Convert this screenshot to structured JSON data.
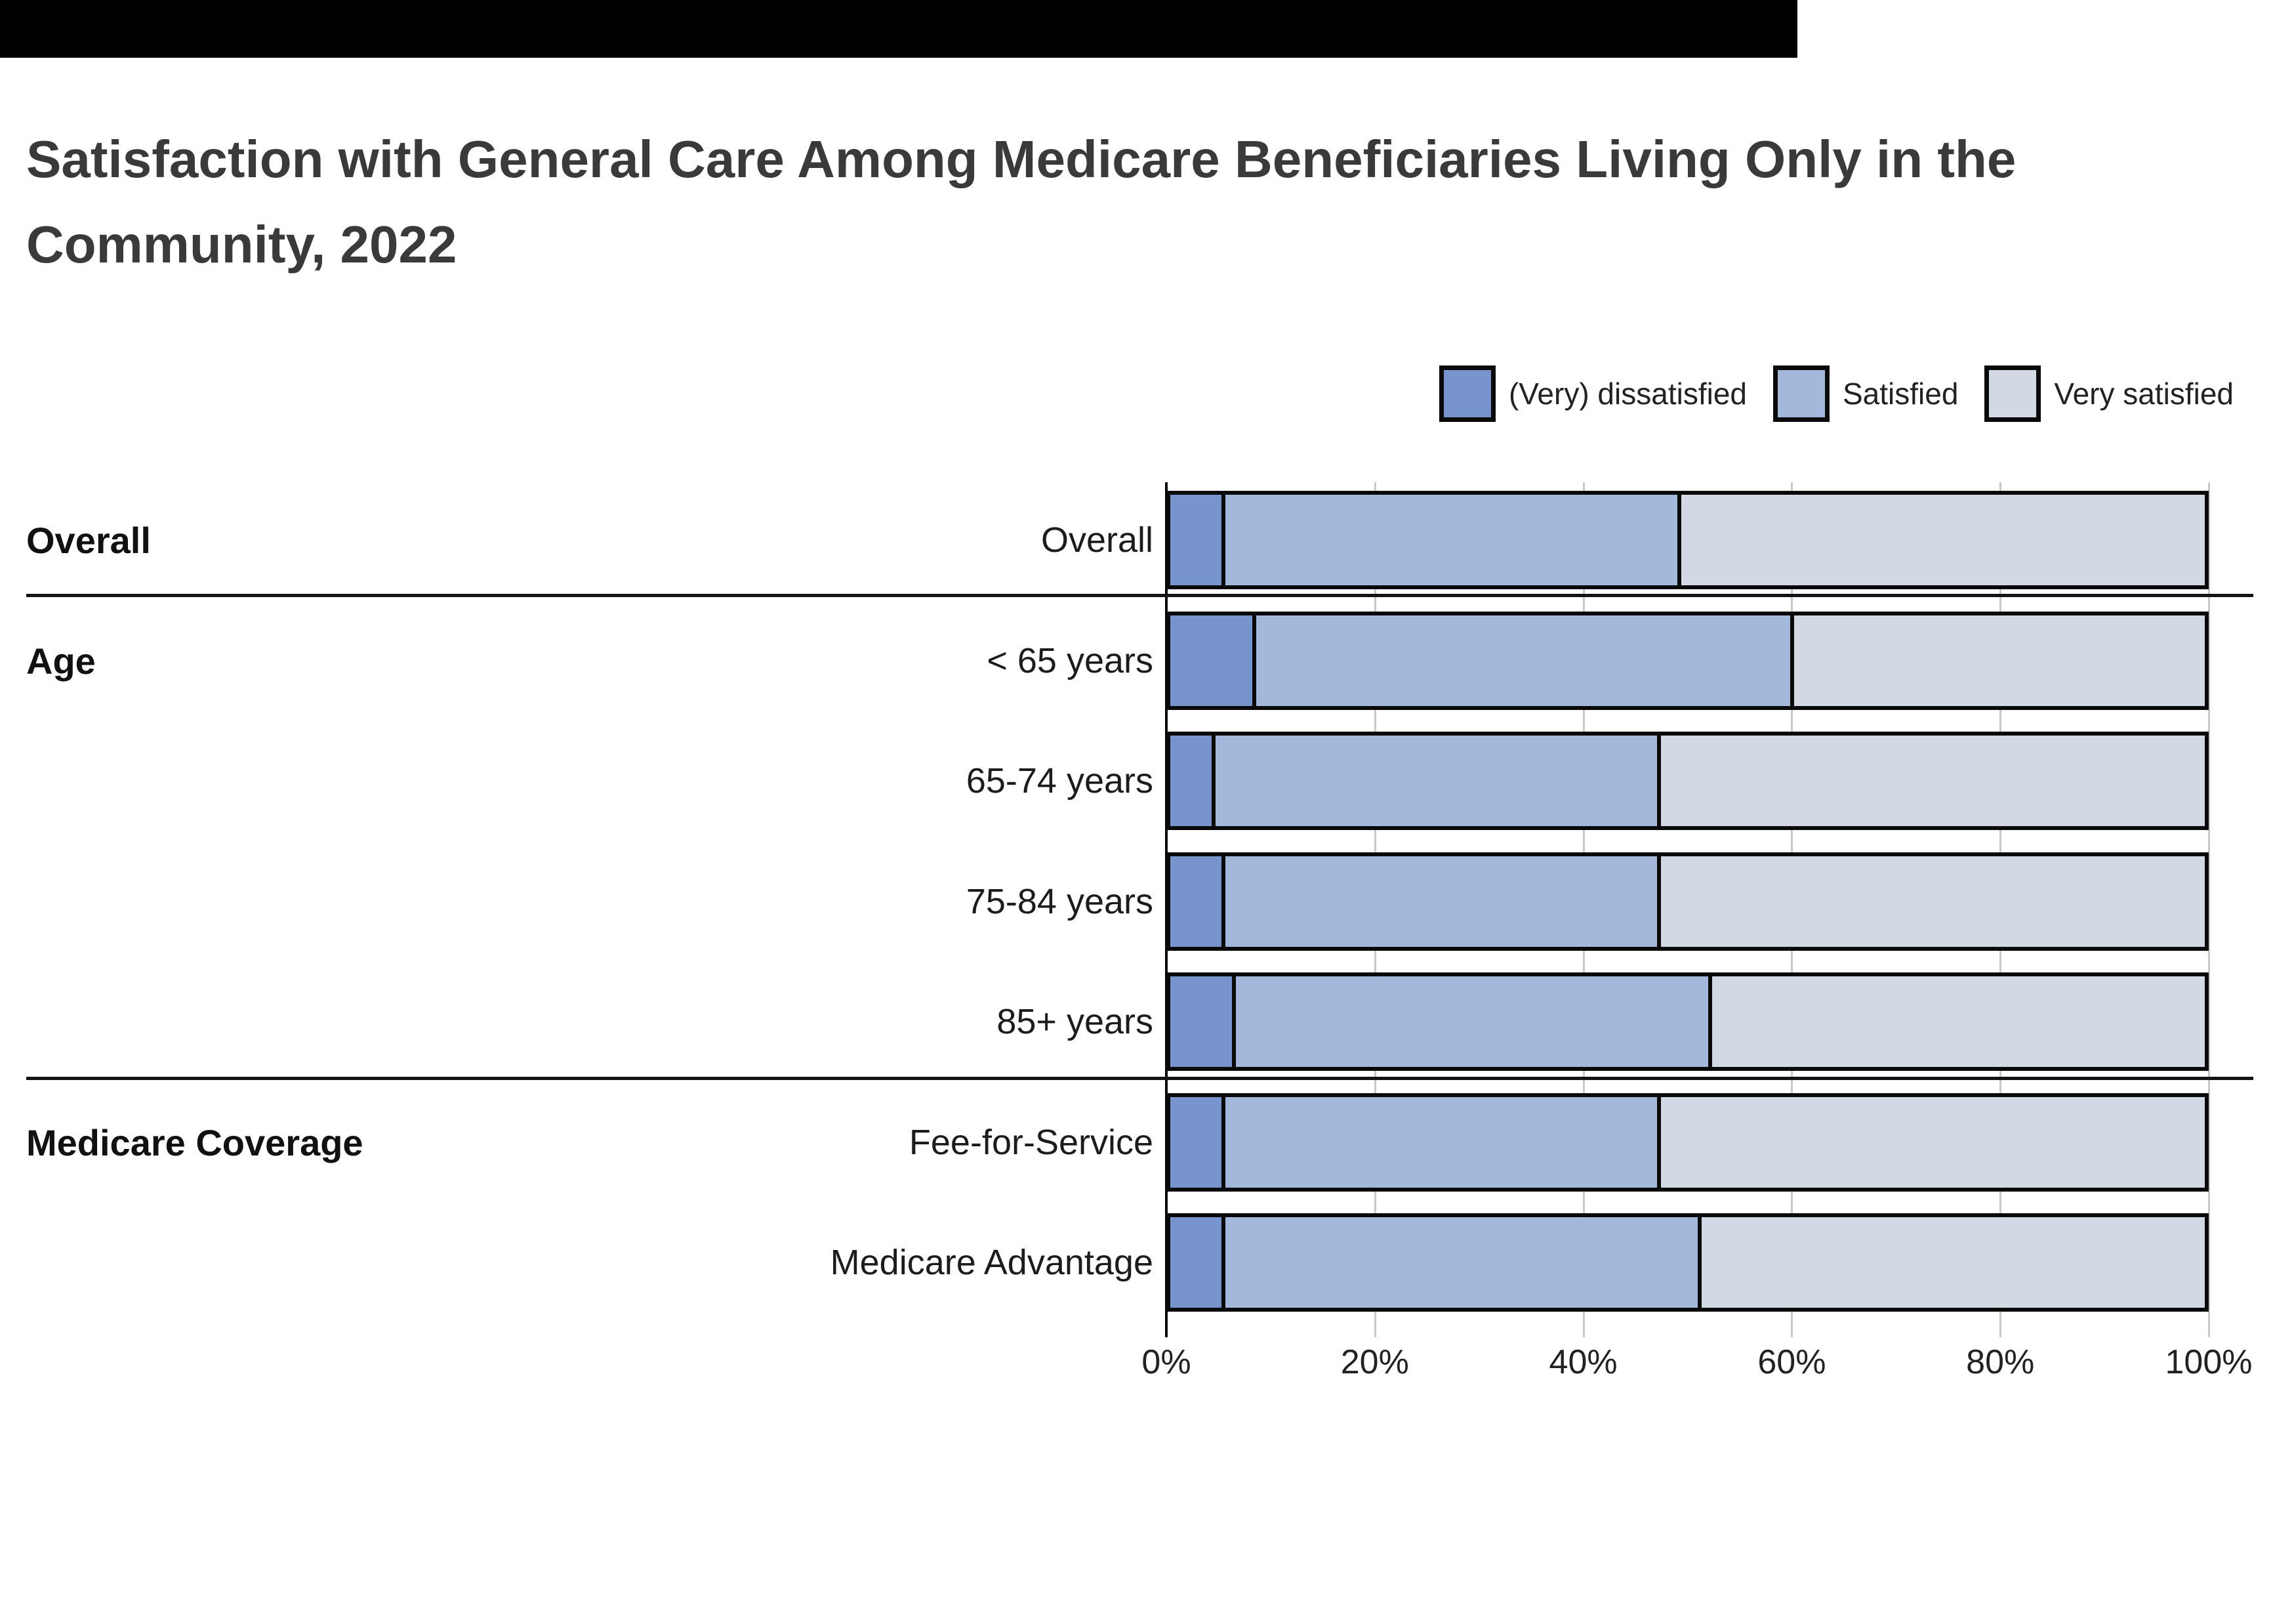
{
  "header": {
    "title": "Satisfaction with General Care Among Medicare Beneficiaries Living Only in the\nCommunity, 2022"
  },
  "legend": {
    "items": [
      {
        "label": "(Very) dissatisfied",
        "color": "#7794CC"
      },
      {
        "label": "Satisfied",
        "color": "#A4B8DC"
      },
      {
        "label": "Very satisfied",
        "color": "#D3D9E4"
      }
    ]
  },
  "chart_data": {
    "type": "bar",
    "orientation": "horizontal",
    "stacked": true,
    "title": "Satisfaction with General Care Among Medicare Beneficiaries Living Only in the Community, 2022",
    "categories": [
      "Overall",
      "< 65 years",
      "65-74 years",
      "75-84 years",
      "85+ years",
      "Fee-for-Service",
      "Medicare Advantage"
    ],
    "groups": [
      {
        "label": "Overall",
        "rows": [
          0
        ]
      },
      {
        "label": "Age",
        "rows": [
          1,
          2,
          3,
          4
        ]
      },
      {
        "label": "Medicare Coverage",
        "rows": [
          5,
          6
        ]
      }
    ],
    "series": [
      {
        "name": "(Very) dissatisfied",
        "color": "#7794CC",
        "values": [
          5,
          8,
          4,
          5,
          6,
          5,
          5
        ]
      },
      {
        "name": "Satisfied",
        "color": "#A4B8DC",
        "values": [
          44,
          52,
          43,
          42,
          46,
          42,
          46
        ]
      },
      {
        "name": "Very satisfied",
        "color": "#D3D9E4",
        "values": [
          51,
          40,
          53,
          53,
          48,
          53,
          49
        ]
      }
    ],
    "x_ticks": [
      "0%",
      "20%",
      "40%",
      "60%",
      "80%",
      "100%"
    ],
    "xlim": [
      0,
      100
    ],
    "grid": true,
    "legend_position": "top-right"
  },
  "colors": {
    "bar_border": "#0a0a0a",
    "gridline": "#c9c9c9",
    "separator": "#141414",
    "title_text": "#3a3a3a"
  }
}
